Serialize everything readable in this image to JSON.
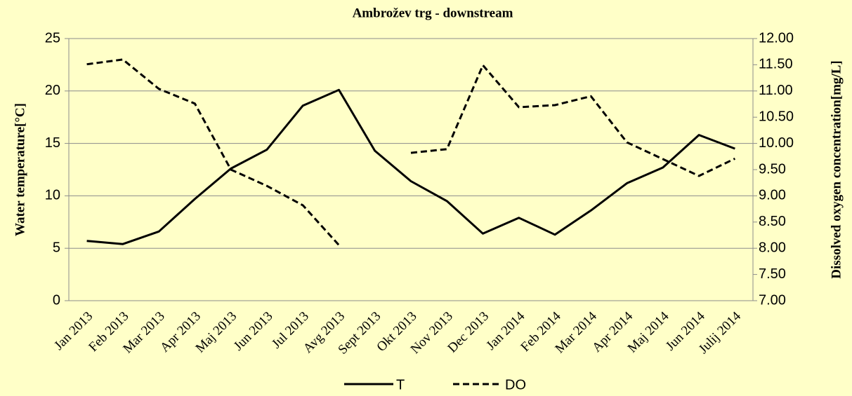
{
  "chart_data": {
    "type": "line",
    "title": "Ambrožev trg - downstream",
    "ylabel": "Water temperature[°C]",
    "y2label": "Dissolved oxygen concentration[mg/L]",
    "categories": [
      "Jan 2013",
      "Feb 2013",
      "Mar 2013",
      "Apr 2013",
      "Maj 2013",
      "Jun 2013",
      "Jul 2013",
      "Avg 2013",
      "Sept 2013",
      "Okt 2013",
      "Nov 2013",
      "Dec 2013",
      "Jan 2014",
      "Feb 2014",
      "Mar 2014",
      "Apr 2014",
      "Maj 2014",
      "Jun 2014",
      "Julij 2014"
    ],
    "series": [
      {
        "name": "T",
        "color": "#000000",
        "dash": false,
        "values": [
          5.7,
          5.4,
          6.6,
          9.7,
          12.6,
          14.4,
          18.6,
          20.1,
          14.3,
          11.4,
          9.5,
          6.4,
          7.9,
          6.3,
          8.6,
          11.2,
          12.7,
          15.8,
          14.5
        ]
      },
      {
        "name": "DO",
        "color": "#000000",
        "dash": true,
        "axis": "y2",
        "values": [
          11.51,
          11.6,
          11.04,
          10.76,
          9.5,
          9.19,
          8.82,
          8.06,
          null,
          9.82,
          9.89,
          11.49,
          10.69,
          10.73,
          10.9,
          10.02,
          9.7,
          9.38,
          9.71
        ]
      }
    ],
    "ylim": [
      0,
      25
    ],
    "yticks": [
      0,
      5,
      10,
      15,
      20,
      25
    ],
    "y2lim": [
      7,
      12
    ],
    "y2ticks": [
      {
        "value": 7,
        "label": "7.00"
      },
      {
        "value": 7.5,
        "label": "7.50"
      },
      {
        "value": 8,
        "label": "8.00"
      },
      {
        "value": 8.5,
        "label": "8.50"
      },
      {
        "value": 9,
        "label": "9.00"
      },
      {
        "value": 9.5,
        "label": "9.50"
      },
      {
        "value": 10,
        "label": "10.00"
      },
      {
        "value": 10.5,
        "label": "10.50"
      },
      {
        "value": 11,
        "label": "11.00"
      },
      {
        "value": 11.5,
        "label": "11.50"
      },
      {
        "value": 12,
        "label": "12.00"
      }
    ],
    "grid": true,
    "legend": "bottom"
  }
}
